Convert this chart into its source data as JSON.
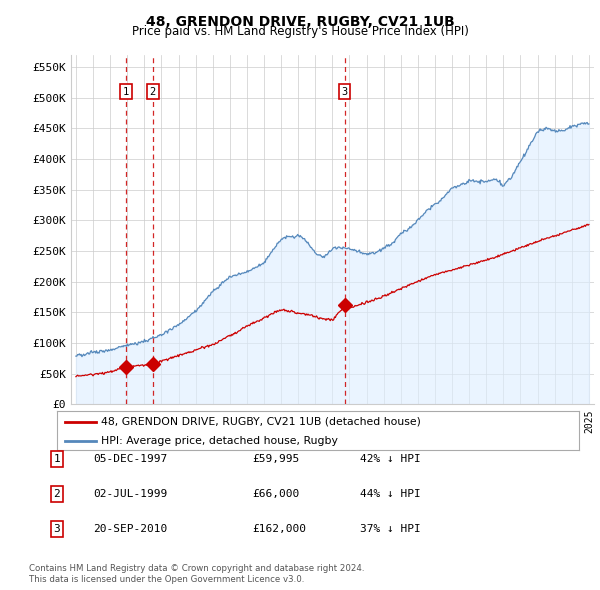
{
  "title": "48, GRENDON DRIVE, RUGBY, CV21 1UB",
  "subtitle": "Price paid vs. HM Land Registry's House Price Index (HPI)",
  "legend_line1": "48, GRENDON DRIVE, RUGBY, CV21 1UB (detached house)",
  "legend_line2": "HPI: Average price, detached house, Rugby",
  "footer1": "Contains HM Land Registry data © Crown copyright and database right 2024.",
  "footer2": "This data is licensed under the Open Government Licence v3.0.",
  "sale_dates": [
    1997.92,
    1999.5,
    2010.72
  ],
  "sale_prices": [
    59995,
    66000,
    162000
  ],
  "sale_labels": [
    "1",
    "2",
    "3"
  ],
  "sale_info": [
    {
      "label": "1",
      "date": "05-DEC-1997",
      "price": "£59,995",
      "hpi": "42% ↓ HPI"
    },
    {
      "label": "2",
      "date": "02-JUL-1999",
      "price": "£66,000",
      "hpi": "44% ↓ HPI"
    },
    {
      "label": "3",
      "date": "20-SEP-2010",
      "price": "£162,000",
      "hpi": "37% ↓ HPI"
    }
  ],
  "red_line_color": "#cc0000",
  "blue_line_color": "#5588bb",
  "blue_fill_color": "#ddeeff",
  "ylim": [
    0,
    570000
  ],
  "yticks": [
    0,
    50000,
    100000,
    150000,
    200000,
    250000,
    300000,
    350000,
    400000,
    450000,
    500000,
    550000
  ],
  "ytick_labels": [
    "£0",
    "£50K",
    "£100K",
    "£150K",
    "£200K",
    "£250K",
    "£300K",
    "£350K",
    "£400K",
    "£450K",
    "£500K",
    "£550K"
  ],
  "xlim": [
    1994.7,
    2025.3
  ],
  "xticks": [
    1995,
    1996,
    1997,
    1998,
    1999,
    2000,
    2001,
    2002,
    2003,
    2004,
    2005,
    2006,
    2007,
    2008,
    2009,
    2010,
    2011,
    2012,
    2013,
    2014,
    2015,
    2016,
    2017,
    2018,
    2019,
    2020,
    2021,
    2022,
    2023,
    2024,
    2025
  ],
  "hpi_anchors_years": [
    1995,
    1996,
    1997,
    1998,
    1999,
    2000,
    2001,
    2002,
    2003,
    2004,
    2005,
    2006,
    2007,
    2008,
    2008.5,
    2009,
    2009.5,
    2010,
    2010.5,
    2011,
    2011.5,
    2012,
    2012.5,
    2013,
    2013.5,
    2014,
    2014.5,
    2015,
    2015.5,
    2016,
    2016.5,
    2017,
    2017.5,
    2018,
    2018.5,
    2019,
    2019.5,
    2020,
    2020.5,
    2021,
    2021.5,
    2022,
    2022.5,
    2023,
    2023.5,
    2024,
    2024.5,
    2025
  ],
  "hpi_anchors_vals": [
    80000,
    85000,
    90000,
    97000,
    103000,
    115000,
    128000,
    152000,
    185000,
    210000,
    218000,
    233000,
    272000,
    278000,
    268000,
    248000,
    242000,
    255000,
    258000,
    255000,
    252000,
    248000,
    250000,
    257000,
    265000,
    280000,
    290000,
    305000,
    318000,
    330000,
    342000,
    356000,
    362000,
    368000,
    367000,
    368000,
    370000,
    360000,
    375000,
    400000,
    425000,
    450000,
    455000,
    450000,
    452000,
    458000,
    462000,
    462000
  ],
  "red_anchors_years": [
    1995,
    1997.0,
    1997.92,
    1999.5,
    2003,
    2007,
    2008.5,
    2010,
    2010.72,
    2011,
    2013,
    2016,
    2019,
    2022,
    2025
  ],
  "red_anchors_vals": [
    45000,
    52000,
    59995,
    66000,
    97000,
    155000,
    147000,
    138000,
    162000,
    158000,
    178000,
    215000,
    238000,
    270000,
    298000
  ]
}
